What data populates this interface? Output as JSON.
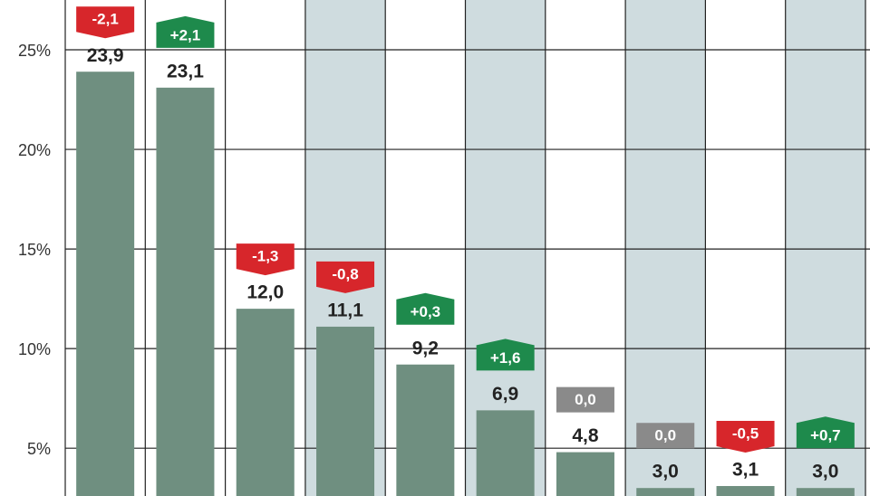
{
  "chart_data": {
    "type": "bar",
    "categories": [
      null,
      null,
      null,
      null,
      null,
      null,
      null,
      null,
      null,
      null
    ],
    "series": [
      {
        "color": "#6f8f80",
        "values": [
          23.9,
          23.1,
          12.0,
          11.1,
          9.2,
          6.9,
          4.8,
          3.0,
          3.1,
          3.0
        ],
        "value_labels": [
          "23,9",
          "23,1",
          "12,0",
          "11,1",
          "9,2",
          "6,9",
          "4,8",
          "3,0",
          "3,1",
          "3,0"
        ]
      }
    ],
    "changes": {
      "values": [
        -2.1,
        2.1,
        -1.3,
        -0.8,
        0.3,
        1.6,
        0.0,
        0.0,
        -0.5,
        0.7
      ],
      "value_labels": [
        "-2,1",
        "+2,1",
        "-1,3",
        "-0,8",
        "+0,3",
        "+1,6",
        "0,0",
        "0,0",
        "-0,5",
        "+0,7"
      ]
    },
    "ylim": [
      2.6,
      27.5
    ],
    "yticks": [
      {
        "value": 5,
        "label": "5%"
      },
      {
        "value": 10,
        "label": "10%"
      },
      {
        "value": 15,
        "label": "15%"
      },
      {
        "value": 20,
        "label": "20%"
      },
      {
        "value": 25,
        "label": "25%"
      }
    ],
    "grid": true
  }
}
